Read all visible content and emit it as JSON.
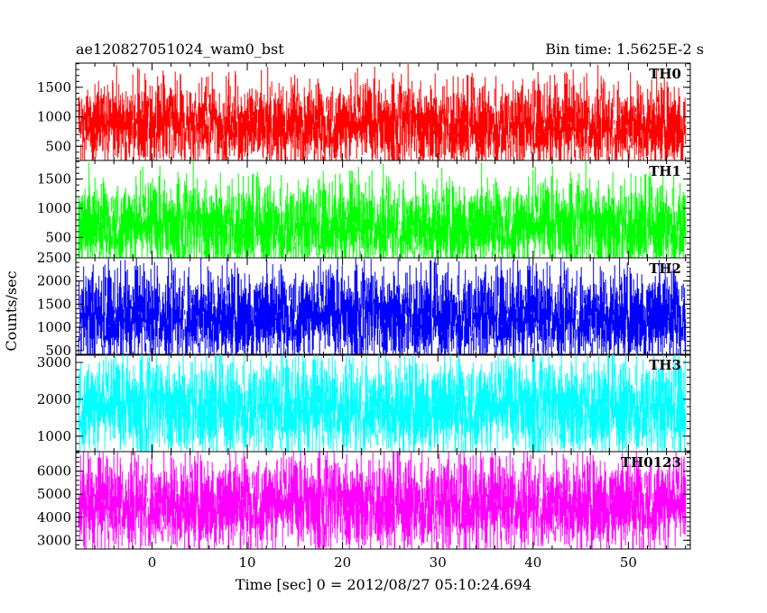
{
  "header": {
    "left_title": "ae120827051024_wam0_bst",
    "right_title": "Bin time: 1.5625E-2 s"
  },
  "chart_data": {
    "type": "line",
    "xlabel": "Time [sec] 0 = 2012/08/27 05:10:24.694",
    "ylabel": "Counts/sec",
    "xlim": [
      -8,
      56.5
    ],
    "x_ticks": [
      0,
      10,
      20,
      30,
      40,
      50
    ],
    "x_tick_labels": [
      "0",
      "10",
      "20",
      "30",
      "40",
      "50"
    ],
    "data_x_range": [
      -7.7,
      56
    ],
    "panels": [
      {
        "name": "TH0",
        "color": "#ff0000",
        "ylim": [
          260,
          1910
        ],
        "y_ticks": [
          500,
          1000,
          1500
        ],
        "y_tick_labels": [
          "500",
          "1000",
          "1500"
        ],
        "mean": 860,
        "typical_min": 380,
        "typical_max": 1500,
        "extreme_max": 1900
      },
      {
        "name": "TH1",
        "color": "#00ff00",
        "ylim": [
          150,
          1820
        ],
        "y_ticks": [
          500,
          1000,
          1500
        ],
        "y_tick_labels": [
          "500",
          "1000",
          "1500"
        ],
        "mean": 700,
        "typical_min": 230,
        "typical_max": 1400,
        "extreme_max": 1810
      },
      {
        "name": "TH2",
        "color": "#0000ff",
        "ylim": [
          400,
          2500
        ],
        "y_ticks": [
          500,
          1000,
          1500,
          2000,
          2500
        ],
        "y_tick_labels": [
          "500",
          "1000",
          "1500",
          "2000",
          "2500"
        ],
        "mean": 1250,
        "typical_min": 520,
        "typical_max": 2100,
        "extreme_max": 2480
      },
      {
        "name": "TH3",
        "color": "#00ffff",
        "ylim": [
          580,
          3220
        ],
        "y_ticks": [
          1000,
          2000,
          3000
        ],
        "y_tick_labels": [
          "1000",
          "2000",
          "3000"
        ],
        "mean": 1800,
        "typical_min": 800,
        "typical_max": 2850,
        "extreme_max": 3200
      },
      {
        "name": "TH0123",
        "color": "#ff00ff",
        "ylim": [
          2620,
          6850
        ],
        "y_ticks": [
          3000,
          4000,
          5000,
          6000
        ],
        "y_tick_labels": [
          "3000",
          "4000",
          "5000",
          "6000"
        ],
        "mean": 4600,
        "typical_min": 3000,
        "typical_max": 6200,
        "extreme_max": 6830
      }
    ]
  }
}
